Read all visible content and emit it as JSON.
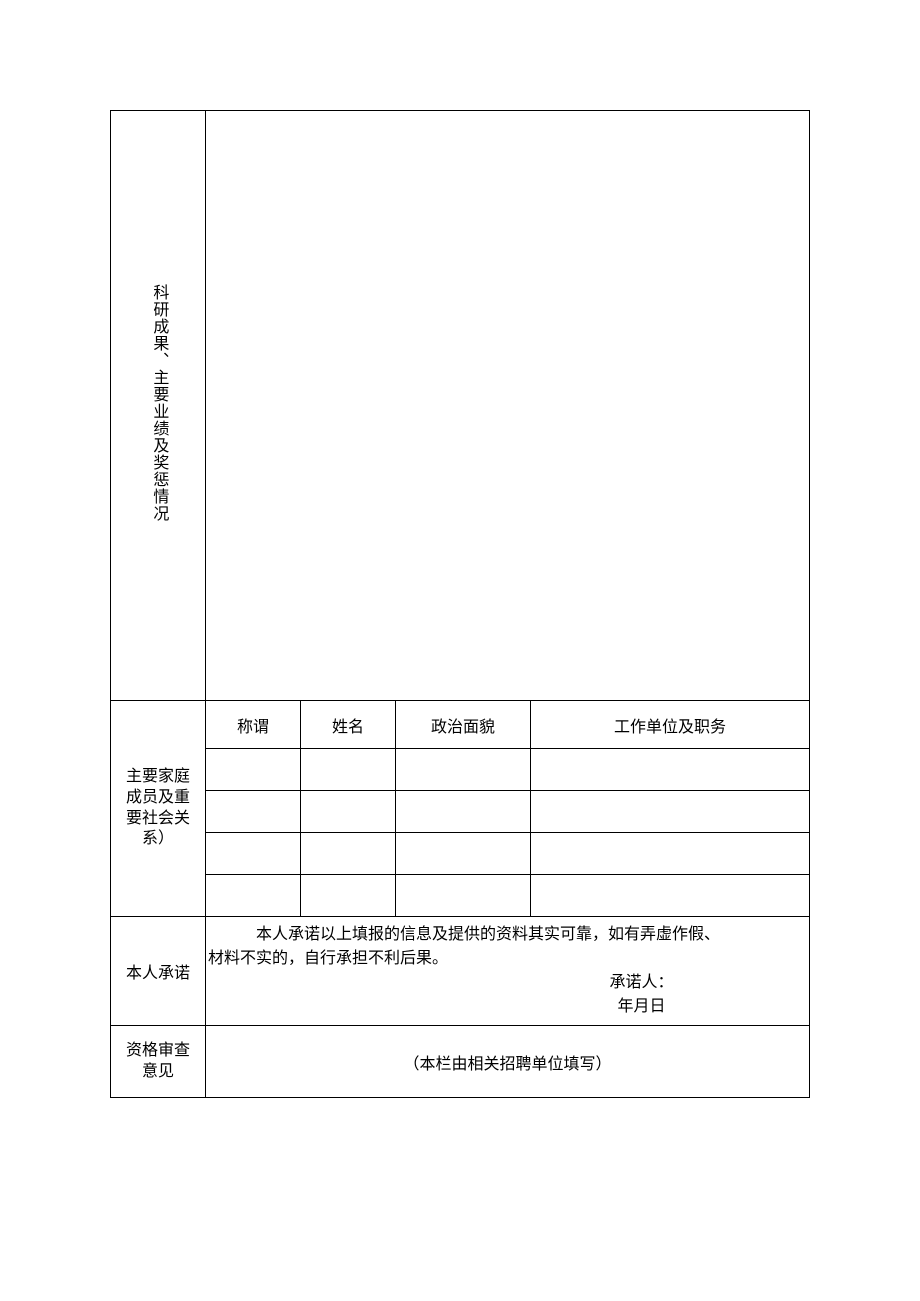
{
  "sections": {
    "research": {
      "label": "科研成果、主要业绩及奖惩情况",
      "value": ""
    },
    "family": {
      "label_line1": "主要家庭",
      "label_line2": "成员及重",
      "label_line3": "要社会关",
      "label_line4": "系）",
      "headers": {
        "title": "称谓",
        "name": "姓名",
        "political": "政治面貌",
        "work": "工作单位及职务"
      },
      "rows": [
        {
          "title": "",
          "name": "",
          "political": "",
          "work": ""
        },
        {
          "title": "",
          "name": "",
          "political": "",
          "work": ""
        },
        {
          "title": "",
          "name": "",
          "political": "",
          "work": ""
        },
        {
          "title": "",
          "name": "",
          "political": "",
          "work": ""
        }
      ]
    },
    "promise": {
      "label": "本人承诺",
      "text_line1": "本人承诺以上填报的信息及提供的资料其实可靠，如有弄虚作假、",
      "text_line2": "材料不实的，自行承担不利后果。",
      "signer_label": "承诺人：",
      "date_label": "年月日"
    },
    "review": {
      "label_line1": "资格审查",
      "label_line2": "意见",
      "note": "（本栏由相关招聘单位填写）"
    }
  },
  "style": {
    "border_color": "#000000",
    "text_color": "#000000",
    "background_color": "#ffffff",
    "font_size": 16
  }
}
